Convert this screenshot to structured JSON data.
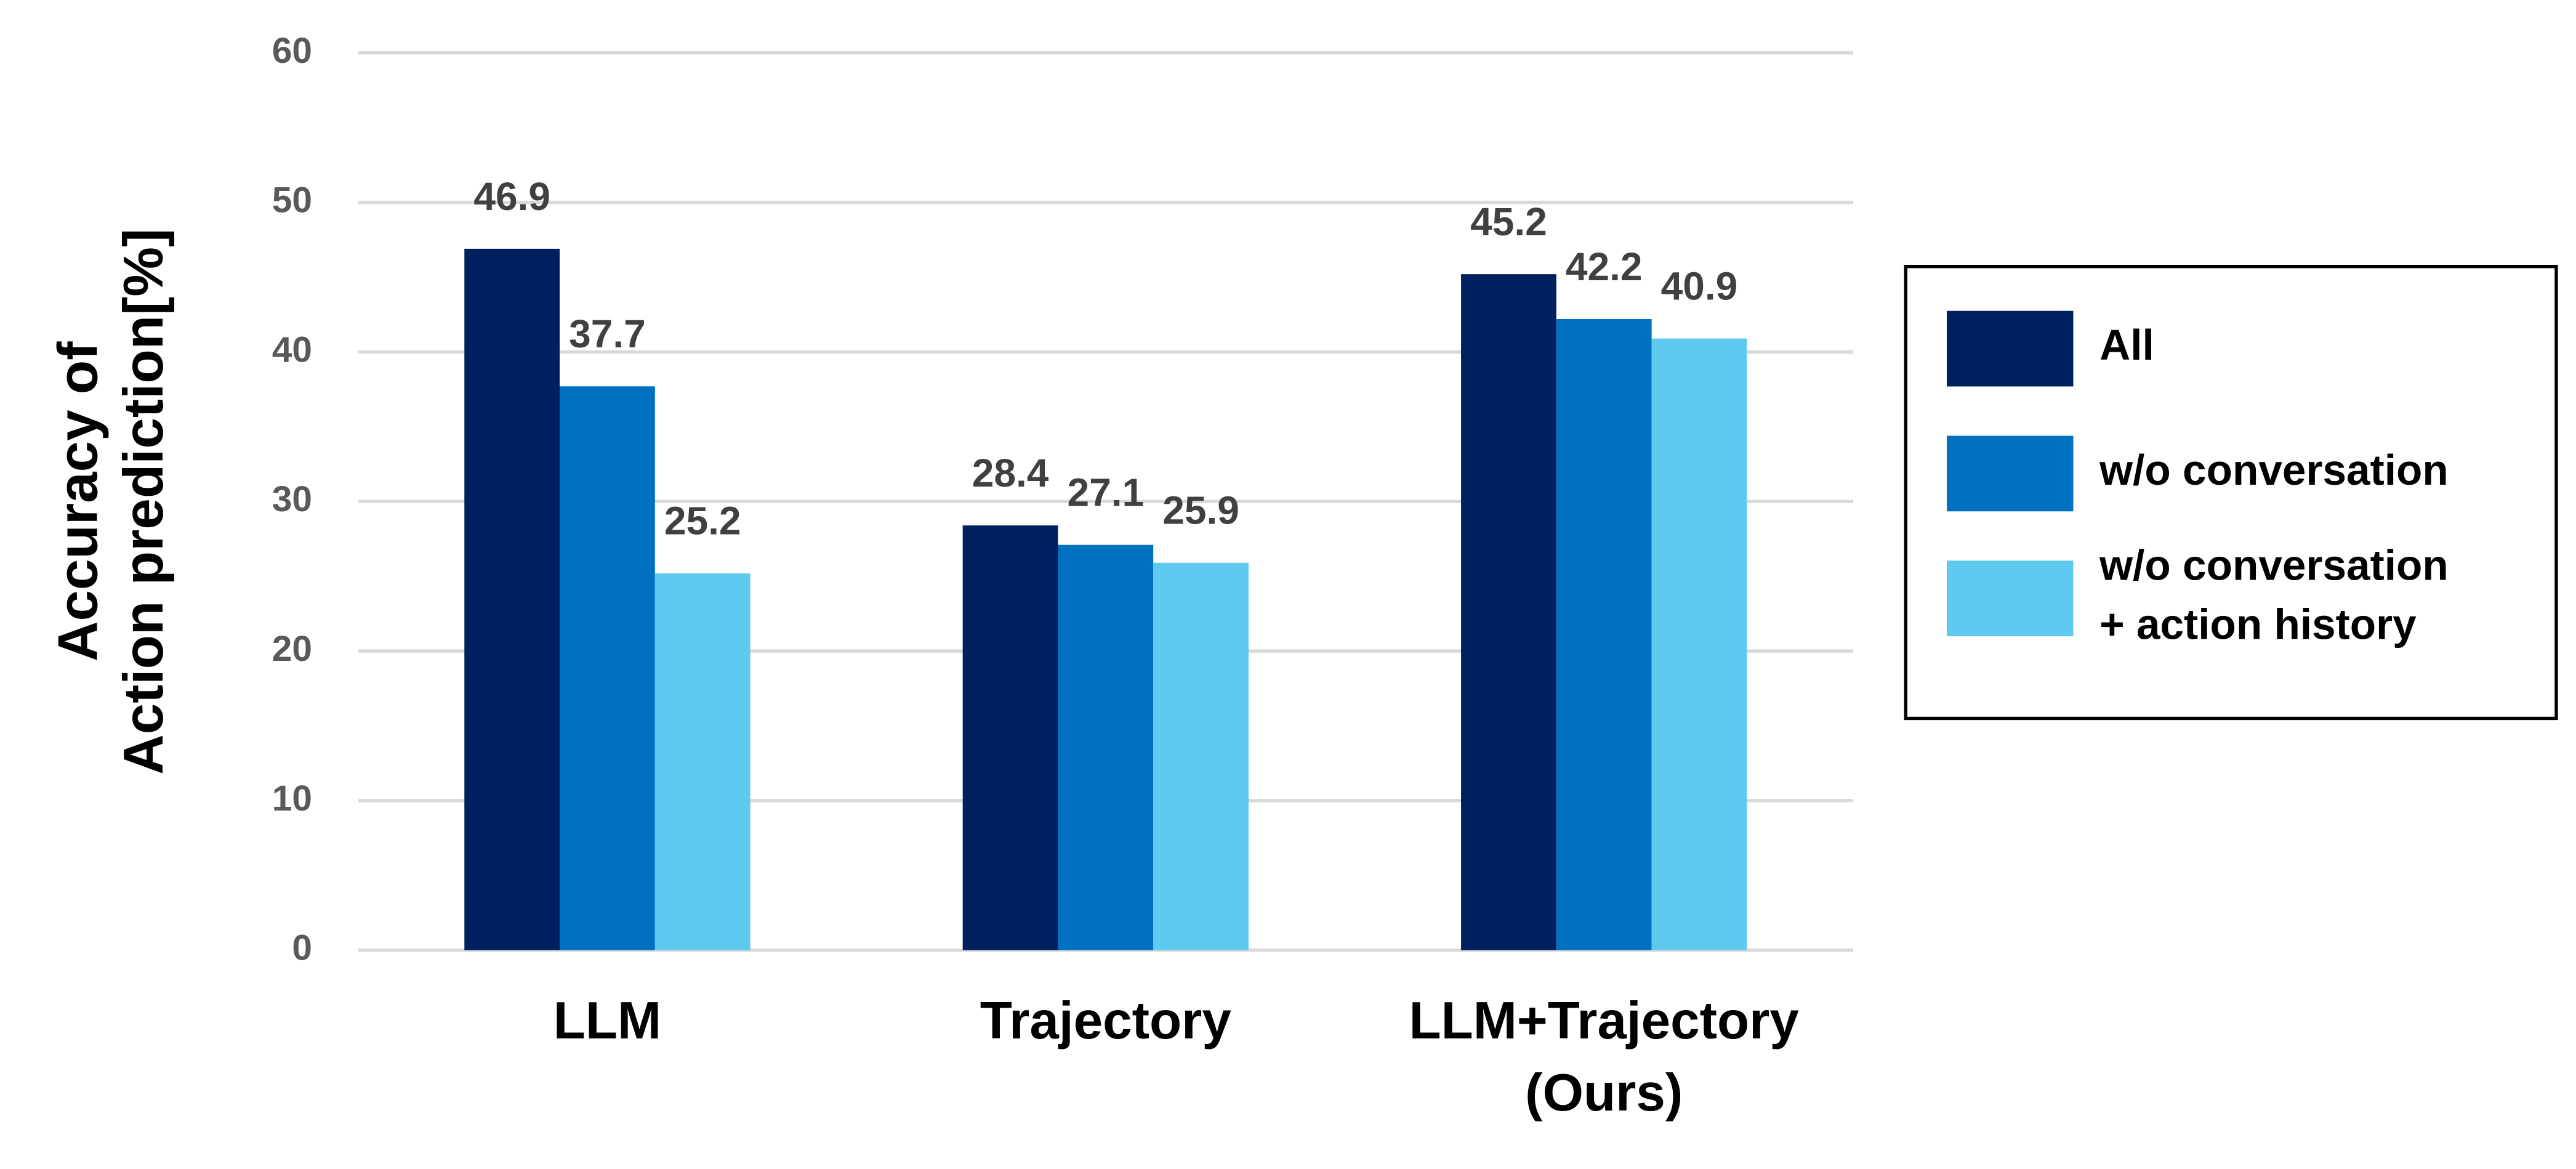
{
  "chart_data": {
    "type": "bar",
    "y_label": "Accuracy of\nAction prediction[%]",
    "categories": [
      "LLM",
      "Trajectory",
      "LLM+Trajectory\n(Ours)"
    ],
    "series": [
      {
        "name": "All",
        "color": "#002060",
        "values": [
          46.9,
          28.4,
          45.2
        ]
      },
      {
        "name": "w/o conversation",
        "color": "#0070c0",
        "values": [
          37.7,
          27.1,
          42.2
        ]
      },
      {
        "name": "w/o conversation\n+ action history",
        "color": "#5fc9f0",
        "values": [
          25.2,
          25.9,
          40.9
        ]
      }
    ],
    "ylim": [
      0,
      60
    ],
    "yticks": [
      0,
      10,
      20,
      30,
      40,
      50,
      60
    ],
    "grid": true,
    "legend": "right"
  }
}
